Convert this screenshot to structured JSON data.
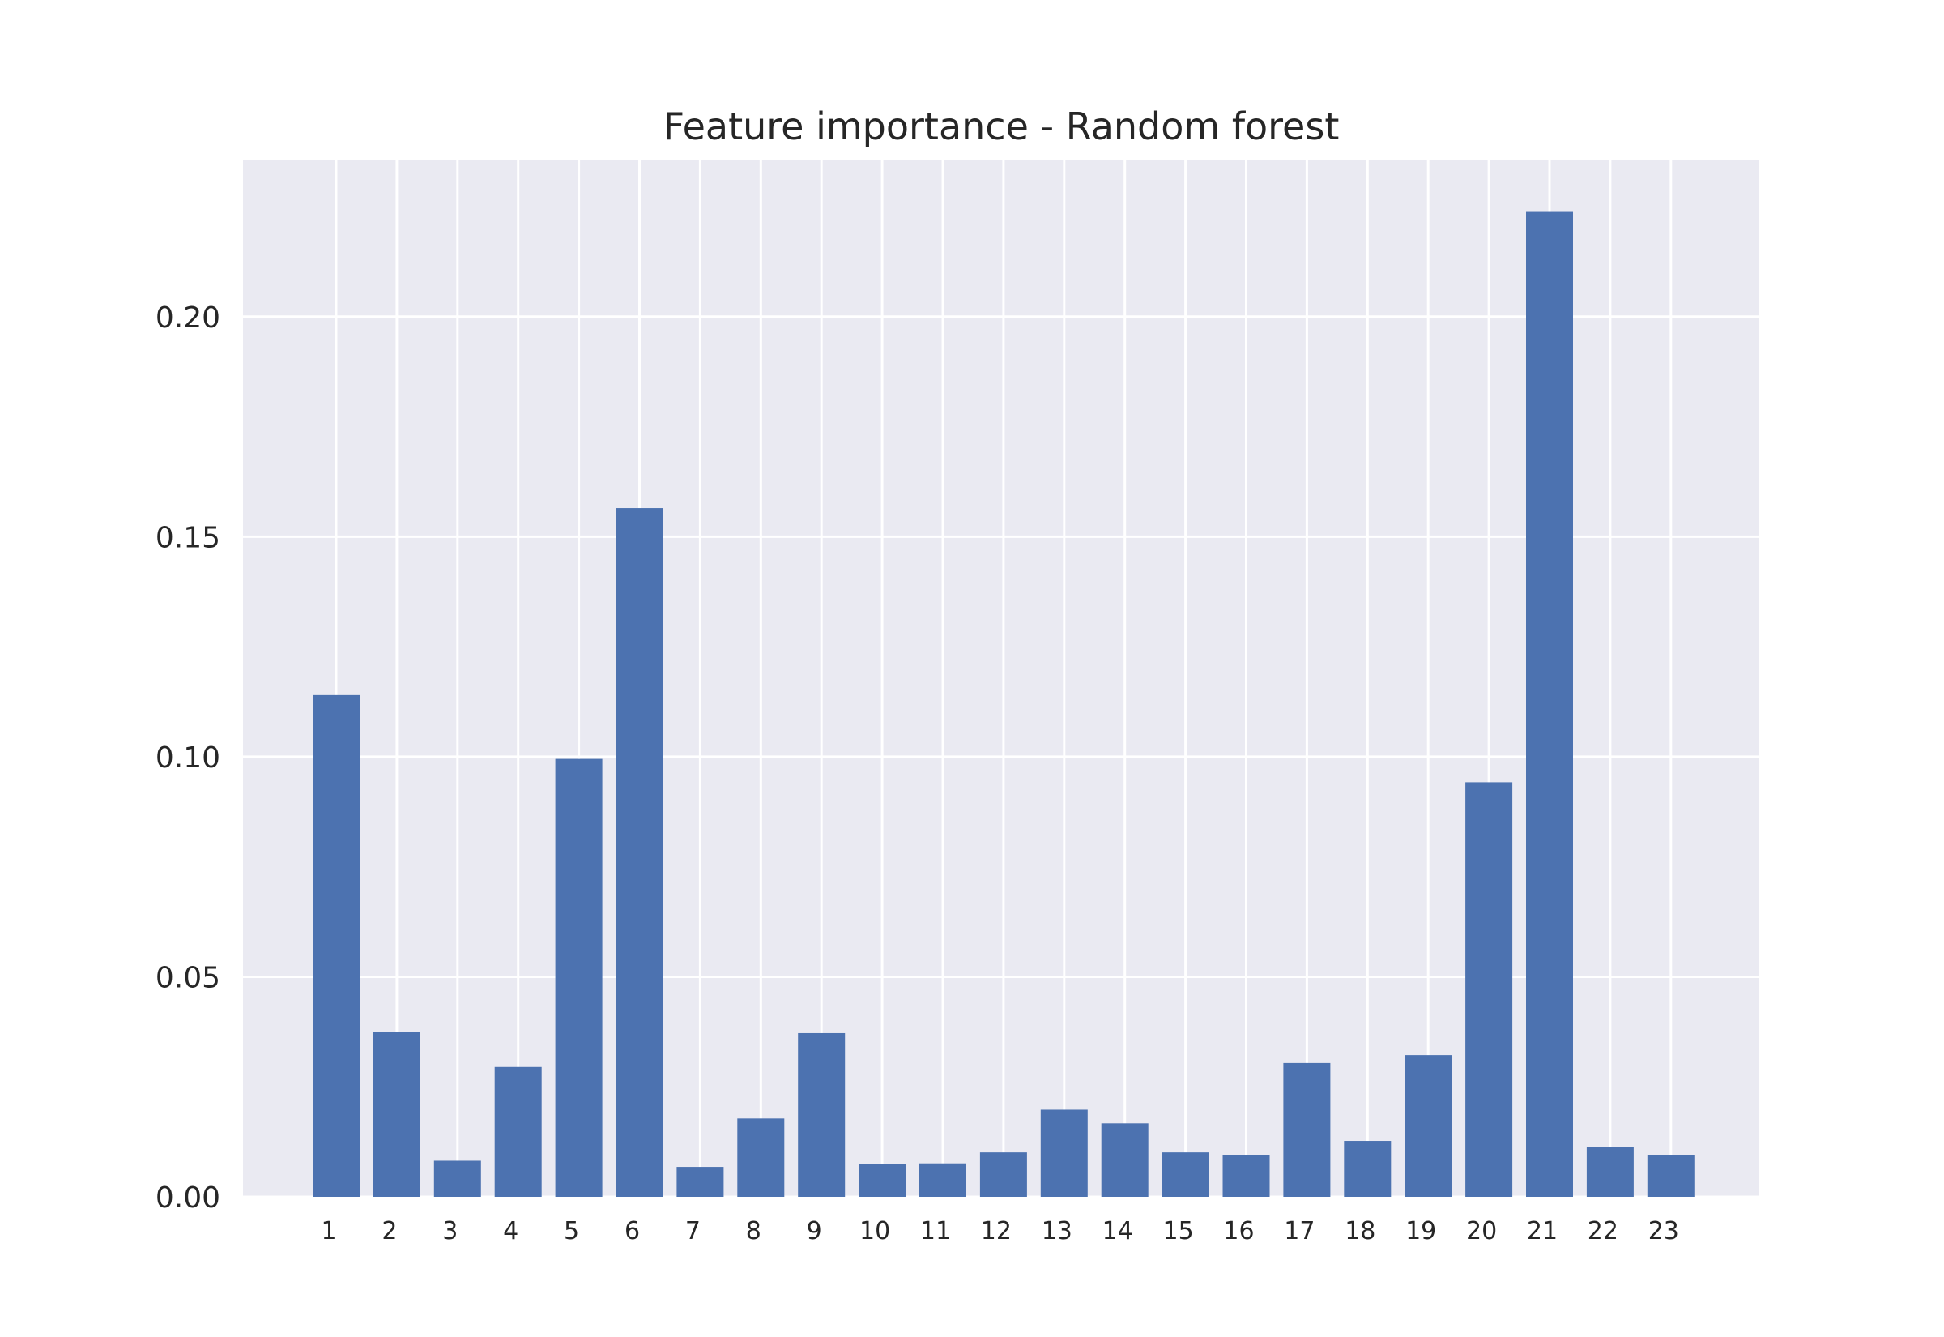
{
  "chart_data": {
    "type": "bar",
    "title": "Feature importance - Random forest",
    "xlabel": "",
    "ylabel": "",
    "categories": [
      "1",
      "2",
      "3",
      "4",
      "5",
      "6",
      "7",
      "8",
      "9",
      "10",
      "11",
      "12",
      "13",
      "14",
      "15",
      "16",
      "17",
      "18",
      "19",
      "20",
      "21",
      "22",
      "23"
    ],
    "values": [
      0.114,
      0.0375,
      0.0082,
      0.0295,
      0.0995,
      0.1565,
      0.0068,
      0.0178,
      0.0372,
      0.0074,
      0.0076,
      0.0101,
      0.0198,
      0.0167,
      0.0101,
      0.0095,
      0.0304,
      0.0127,
      0.0322,
      0.0942,
      0.2238,
      0.0113,
      0.0095
    ],
    "ylim": [
      0,
      0.2355
    ],
    "yticks": [
      0.0,
      0.05,
      0.1,
      0.15,
      0.2
    ],
    "ytick_labels": [
      "0.00",
      "0.05",
      "0.10",
      "0.15",
      "0.20"
    ],
    "grid": true,
    "bar_color": "#4c72b0",
    "background_color": "#eaeaf2"
  }
}
